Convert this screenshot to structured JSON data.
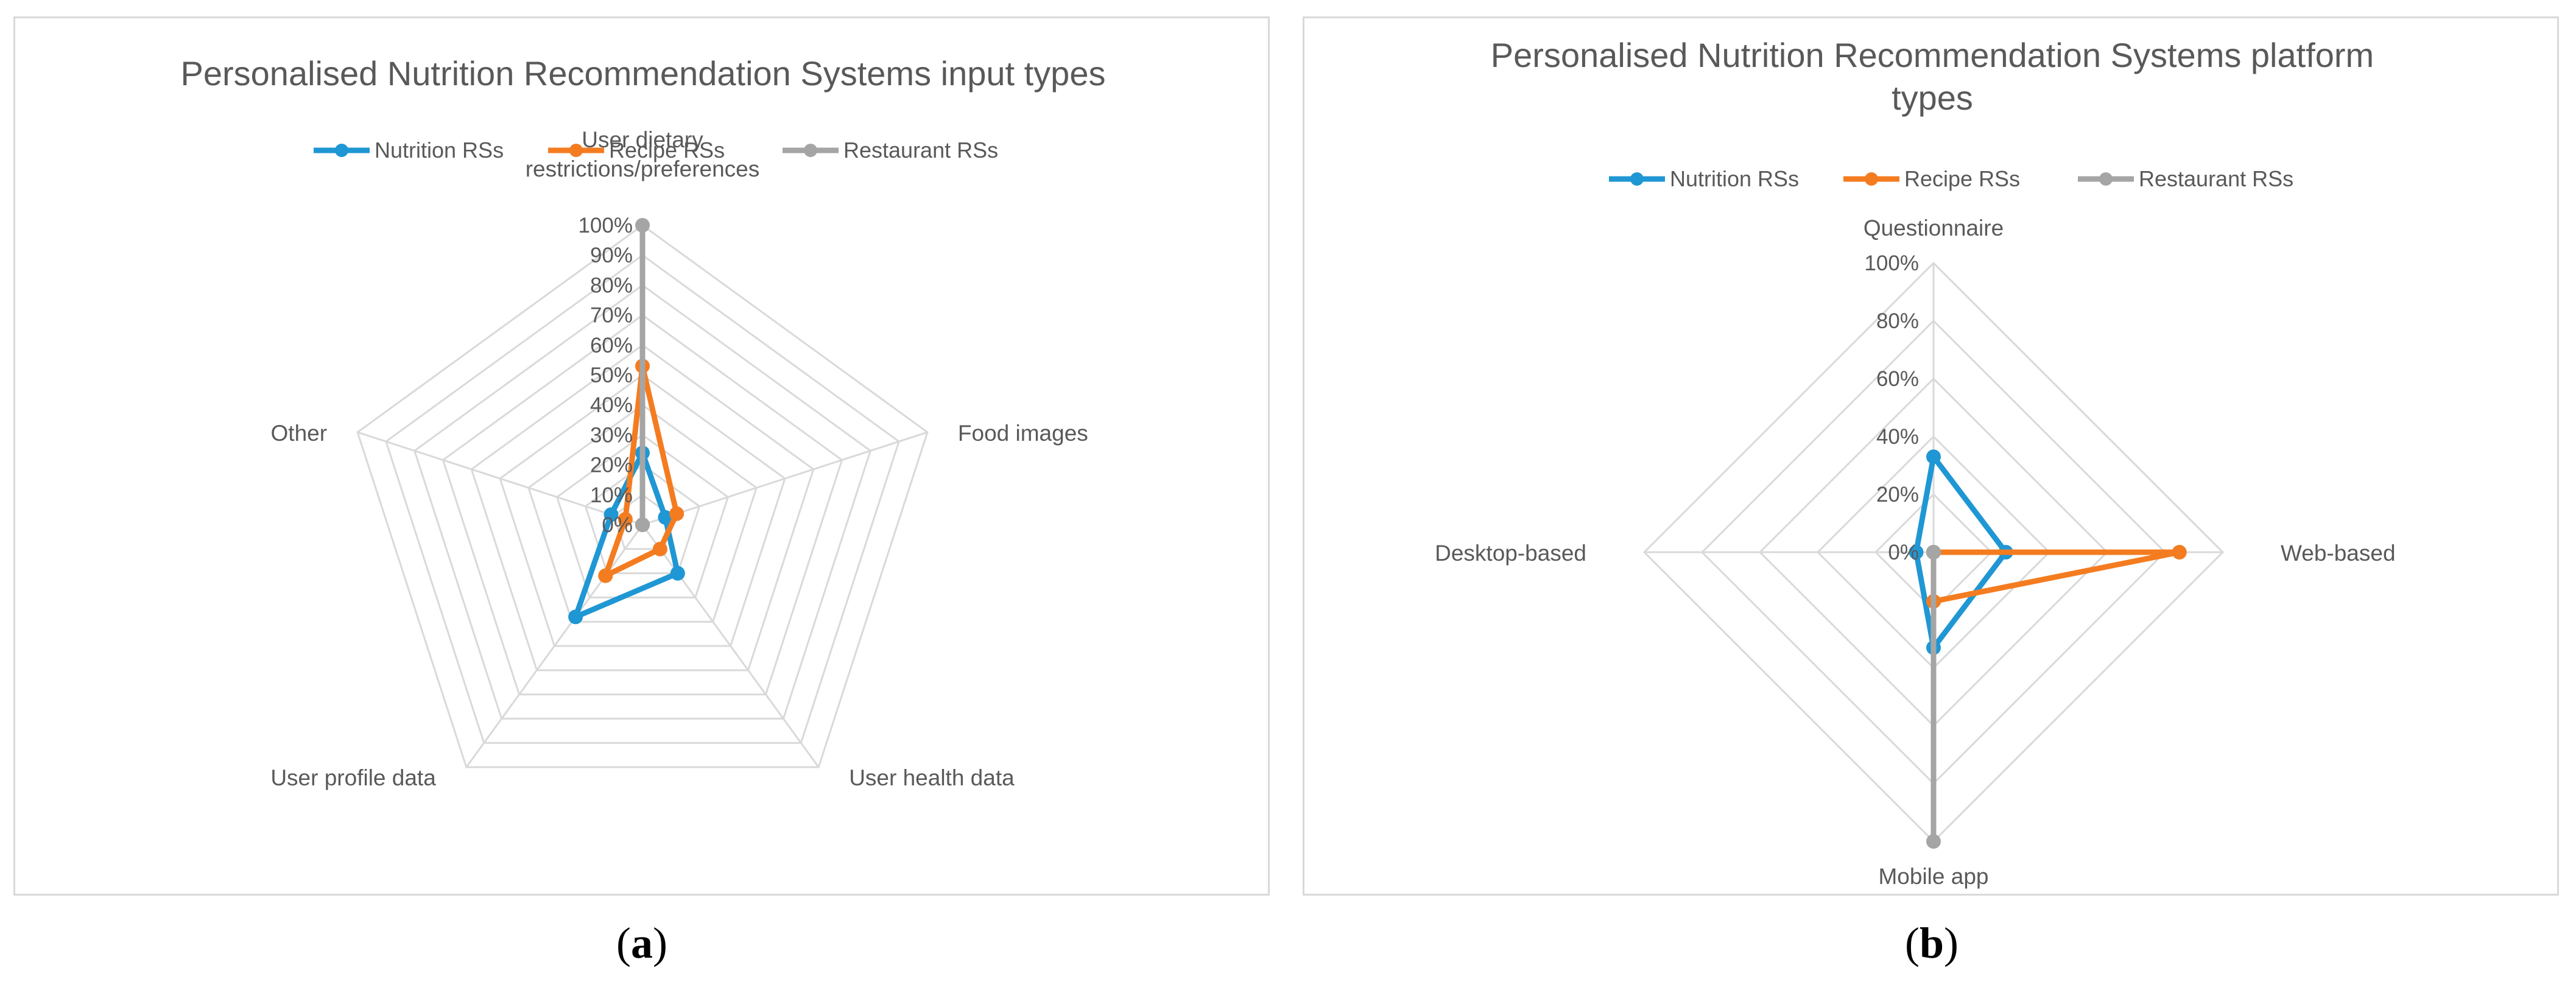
{
  "chart_data": [
    {
      "type": "radar",
      "title": "Personalised Nutrition Recommendation Systems input types",
      "axes": [
        "User dietary restrictions/preferences",
        "Food images",
        "User health data",
        "User profile data",
        "Other"
      ],
      "axis_label_lines": [
        [
          "User dietary",
          "restrictions/preferences"
        ],
        [
          "Food images"
        ],
        [
          "User health data"
        ],
        [
          "User profile data"
        ],
        [
          "Other"
        ]
      ],
      "ticks": [
        "0%",
        "10%",
        "20%",
        "30%",
        "40%",
        "50%",
        "60%",
        "70%",
        "80%",
        "90%",
        "100%"
      ],
      "range": [
        0,
        100
      ],
      "series": [
        {
          "name": "Nutrition RSs",
          "color": "#1f97d4",
          "values": [
            24,
            8,
            20,
            38,
            11
          ]
        },
        {
          "name": "Recipe RSs",
          "color": "#f47c20",
          "values": [
            53,
            12,
            10,
            21,
            6
          ]
        },
        {
          "name": "Restaurant RSs",
          "color": "#a5a5a5",
          "values": [
            100,
            0,
            0,
            0,
            0
          ]
        }
      ],
      "legend": "top"
    },
    {
      "type": "radar",
      "title_lines": [
        "Personalised Nutrition Recommendation Systems platform",
        "types"
      ],
      "axes": [
        "Questionnaire",
        "Web-based",
        "Mobile app",
        "Desktop-based"
      ],
      "axis_label_lines": [
        [
          "Questionnaire"
        ],
        [
          "Web-based"
        ],
        [
          "Mobile app"
        ],
        [
          "Desktop-based"
        ]
      ],
      "ticks": [
        "0%",
        "20%",
        "40%",
        "60%",
        "80%",
        "100%"
      ],
      "range": [
        0,
        100
      ],
      "series": [
        {
          "name": "Nutrition RSs",
          "color": "#1f97d4",
          "values": [
            33,
            25,
            33,
            6
          ]
        },
        {
          "name": "Recipe RSs",
          "color": "#f47c20",
          "values": [
            0,
            85,
            17,
            0
          ]
        },
        {
          "name": "Restaurant RSs",
          "color": "#a5a5a5",
          "values": [
            0,
            0,
            100,
            0
          ]
        }
      ],
      "legend": "top"
    }
  ],
  "captions": {
    "a": {
      "open": "(",
      "letter": "a",
      "close": ")"
    },
    "b": {
      "open": "(",
      "letter": "b",
      "close": ")"
    }
  }
}
